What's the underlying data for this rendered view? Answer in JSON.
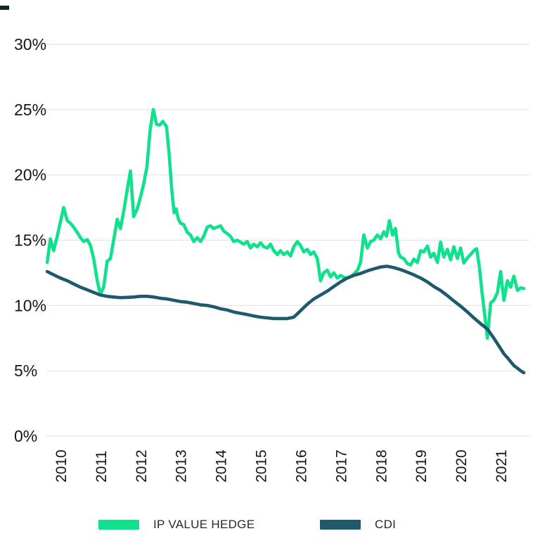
{
  "page": {
    "background": "#ffffff"
  },
  "corner_mark": {
    "color": "#16222a"
  },
  "legend": {
    "items": [
      {
        "label": "IP VALUE HEDGE",
        "color": "#10e18c"
      },
      {
        "label": "CDI",
        "color": "#1e5a6b"
      }
    ]
  },
  "chart_data": {
    "type": "line",
    "title": "",
    "xlabel": "",
    "ylabel": "",
    "grid": "horizontal",
    "grid_color": "#e4e4e4",
    "text_color": "#161616",
    "legend_position": "bottom",
    "ylim": [
      0,
      30
    ],
    "xlim": [
      2009.65,
      2021.72
    ],
    "y_ticks": [
      {
        "value": 30,
        "label": "30%"
      },
      {
        "value": 25,
        "label": "25%"
      },
      {
        "value": 20,
        "label": "20%"
      },
      {
        "value": 15,
        "label": "15%"
      },
      {
        "value": 10,
        "label": "10%"
      },
      {
        "value": 5,
        "label": "5%"
      },
      {
        "value": 0,
        "label": "0%"
      }
    ],
    "x_ticks": [
      {
        "value": 2010,
        "label": "2010"
      },
      {
        "value": 2011,
        "label": "2011"
      },
      {
        "value": 2012,
        "label": "2012"
      },
      {
        "value": 2013,
        "label": "2013"
      },
      {
        "value": 2014,
        "label": "2014"
      },
      {
        "value": 2015,
        "label": "2015"
      },
      {
        "value": 2016,
        "label": "2016"
      },
      {
        "value": 2017,
        "label": "2017"
      },
      {
        "value": 2018,
        "label": "2018"
      },
      {
        "value": 2019,
        "label": "2019"
      },
      {
        "value": 2020,
        "label": "2020"
      },
      {
        "value": 2021,
        "label": "2021"
      }
    ],
    "series": [
      {
        "name": "IP VALUE HEDGE",
        "color": "#10e18c",
        "stroke_width": 4.6,
        "points": [
          [
            2009.67,
            13.3
          ],
          [
            2009.75,
            15.1
          ],
          [
            2009.83,
            14.2
          ],
          [
            2009.92,
            15.3
          ],
          [
            2010.0,
            16.4
          ],
          [
            2010.08,
            17.5
          ],
          [
            2010.17,
            16.5
          ],
          [
            2010.25,
            16.3
          ],
          [
            2010.33,
            16.0
          ],
          [
            2010.42,
            15.6
          ],
          [
            2010.5,
            15.2
          ],
          [
            2010.58,
            14.9
          ],
          [
            2010.67,
            15.05
          ],
          [
            2010.75,
            14.6
          ],
          [
            2010.83,
            13.6
          ],
          [
            2010.92,
            11.9
          ],
          [
            2011.0,
            10.85
          ],
          [
            2011.08,
            11.4
          ],
          [
            2011.17,
            13.4
          ],
          [
            2011.25,
            13.6
          ],
          [
            2011.33,
            15.0
          ],
          [
            2011.42,
            16.6
          ],
          [
            2011.5,
            15.9
          ],
          [
            2011.58,
            17.2
          ],
          [
            2011.67,
            18.9
          ],
          [
            2011.75,
            20.3
          ],
          [
            2011.83,
            16.8
          ],
          [
            2011.92,
            17.4
          ],
          [
            2012.0,
            18.3
          ],
          [
            2012.08,
            19.3
          ],
          [
            2012.16,
            20.6
          ],
          [
            2012.24,
            23.4
          ],
          [
            2012.32,
            25.0
          ],
          [
            2012.4,
            23.9
          ],
          [
            2012.48,
            23.8
          ],
          [
            2012.56,
            24.1
          ],
          [
            2012.65,
            23.7
          ],
          [
            2012.72,
            21.5
          ],
          [
            2012.78,
            18.9
          ],
          [
            2012.84,
            17.1
          ],
          [
            2012.89,
            17.4
          ],
          [
            2012.95,
            16.6
          ],
          [
            2013.0,
            16.3
          ],
          [
            2013.08,
            16.2
          ],
          [
            2013.17,
            15.6
          ],
          [
            2013.25,
            15.4
          ],
          [
            2013.33,
            14.9
          ],
          [
            2013.42,
            15.2
          ],
          [
            2013.5,
            14.9
          ],
          [
            2013.58,
            15.3
          ],
          [
            2013.67,
            16.0
          ],
          [
            2013.75,
            16.1
          ],
          [
            2013.83,
            15.9
          ],
          [
            2013.92,
            16.0
          ],
          [
            2014.0,
            16.1
          ],
          [
            2014.08,
            15.7
          ],
          [
            2014.17,
            15.5
          ],
          [
            2014.25,
            15.3
          ],
          [
            2014.33,
            14.9
          ],
          [
            2014.42,
            15.0
          ],
          [
            2014.5,
            14.85
          ],
          [
            2014.58,
            14.7
          ],
          [
            2014.67,
            14.9
          ],
          [
            2014.75,
            14.4
          ],
          [
            2014.83,
            14.7
          ],
          [
            2014.92,
            14.5
          ],
          [
            2015.0,
            14.8
          ],
          [
            2015.08,
            14.5
          ],
          [
            2015.17,
            14.4
          ],
          [
            2015.25,
            14.7
          ],
          [
            2015.33,
            14.2
          ],
          [
            2015.42,
            13.9
          ],
          [
            2015.5,
            14.2
          ],
          [
            2015.58,
            13.9
          ],
          [
            2015.67,
            14.1
          ],
          [
            2015.75,
            13.8
          ],
          [
            2015.83,
            14.5
          ],
          [
            2015.92,
            14.9
          ],
          [
            2016.0,
            14.6
          ],
          [
            2016.08,
            14.1
          ],
          [
            2016.17,
            14.3
          ],
          [
            2016.25,
            13.9
          ],
          [
            2016.33,
            14.1
          ],
          [
            2016.42,
            13.6
          ],
          [
            2016.5,
            11.9
          ],
          [
            2016.58,
            12.5
          ],
          [
            2016.67,
            12.7
          ],
          [
            2016.75,
            12.2
          ],
          [
            2016.83,
            12.5
          ],
          [
            2016.92,
            12.1
          ],
          [
            2017.0,
            12.3
          ],
          [
            2017.08,
            12.15
          ],
          [
            2017.17,
            12.1
          ],
          [
            2017.25,
            12.2
          ],
          [
            2017.33,
            12.4
          ],
          [
            2017.42,
            12.7
          ],
          [
            2017.5,
            13.3
          ],
          [
            2017.58,
            15.4
          ],
          [
            2017.67,
            14.4
          ],
          [
            2017.75,
            14.9
          ],
          [
            2017.83,
            15.0
          ],
          [
            2017.92,
            15.4
          ],
          [
            2018.0,
            15.1
          ],
          [
            2018.08,
            15.65
          ],
          [
            2018.15,
            15.3
          ],
          [
            2018.22,
            16.5
          ],
          [
            2018.3,
            15.4
          ],
          [
            2018.37,
            15.9
          ],
          [
            2018.45,
            14.0
          ],
          [
            2018.5,
            13.7
          ],
          [
            2018.58,
            13.6
          ],
          [
            2018.67,
            13.2
          ],
          [
            2018.75,
            13.1
          ],
          [
            2018.83,
            13.55
          ],
          [
            2018.92,
            13.3
          ],
          [
            2019.0,
            14.2
          ],
          [
            2019.08,
            14.1
          ],
          [
            2019.17,
            14.55
          ],
          [
            2019.25,
            13.7
          ],
          [
            2019.33,
            14.0
          ],
          [
            2019.42,
            13.3
          ],
          [
            2019.5,
            14.85
          ],
          [
            2019.58,
            13.7
          ],
          [
            2019.67,
            14.3
          ],
          [
            2019.75,
            13.5
          ],
          [
            2019.83,
            14.5
          ],
          [
            2019.92,
            13.6
          ],
          [
            2020.0,
            14.4
          ],
          [
            2020.08,
            13.25
          ],
          [
            2020.17,
            13.65
          ],
          [
            2020.25,
            13.9
          ],
          [
            2020.33,
            14.2
          ],
          [
            2020.4,
            14.35
          ],
          [
            2020.47,
            12.9
          ],
          [
            2020.53,
            11.1
          ],
          [
            2020.6,
            9.3
          ],
          [
            2020.67,
            7.5
          ],
          [
            2020.75,
            10.2
          ],
          [
            2020.83,
            10.4
          ],
          [
            2020.92,
            11.0
          ],
          [
            2021.0,
            12.6
          ],
          [
            2021.08,
            10.4
          ],
          [
            2021.17,
            11.9
          ],
          [
            2021.25,
            11.4
          ],
          [
            2021.33,
            12.25
          ],
          [
            2021.42,
            11.15
          ],
          [
            2021.5,
            11.35
          ],
          [
            2021.58,
            11.3
          ]
        ]
      },
      {
        "name": "CDI",
        "color": "#1e5a6b",
        "stroke_width": 4.6,
        "points": [
          [
            2009.67,
            12.6
          ],
          [
            2009.83,
            12.35
          ],
          [
            2010.0,
            12.1
          ],
          [
            2010.17,
            11.9
          ],
          [
            2010.33,
            11.65
          ],
          [
            2010.5,
            11.4
          ],
          [
            2010.67,
            11.2
          ],
          [
            2010.83,
            11.0
          ],
          [
            2011.0,
            10.8
          ],
          [
            2011.17,
            10.7
          ],
          [
            2011.33,
            10.65
          ],
          [
            2011.5,
            10.6
          ],
          [
            2011.67,
            10.62
          ],
          [
            2011.83,
            10.65
          ],
          [
            2012.0,
            10.7
          ],
          [
            2012.17,
            10.7
          ],
          [
            2012.33,
            10.65
          ],
          [
            2012.5,
            10.55
          ],
          [
            2012.67,
            10.5
          ],
          [
            2012.83,
            10.4
          ],
          [
            2013.0,
            10.3
          ],
          [
            2013.17,
            10.25
          ],
          [
            2013.33,
            10.15
          ],
          [
            2013.5,
            10.05
          ],
          [
            2013.67,
            10.0
          ],
          [
            2013.83,
            9.9
          ],
          [
            2014.0,
            9.75
          ],
          [
            2014.17,
            9.65
          ],
          [
            2014.33,
            9.5
          ],
          [
            2014.5,
            9.4
          ],
          [
            2014.67,
            9.3
          ],
          [
            2014.83,
            9.2
          ],
          [
            2015.0,
            9.1
          ],
          [
            2015.17,
            9.05
          ],
          [
            2015.33,
            9.0
          ],
          [
            2015.5,
            9.0
          ],
          [
            2015.67,
            9.0
          ],
          [
            2015.83,
            9.1
          ],
          [
            2016.0,
            9.6
          ],
          [
            2016.17,
            10.1
          ],
          [
            2016.33,
            10.5
          ],
          [
            2016.5,
            10.8
          ],
          [
            2016.67,
            11.1
          ],
          [
            2016.83,
            11.45
          ],
          [
            2017.0,
            11.8
          ],
          [
            2017.17,
            12.1
          ],
          [
            2017.33,
            12.3
          ],
          [
            2017.5,
            12.45
          ],
          [
            2017.67,
            12.65
          ],
          [
            2017.83,
            12.8
          ],
          [
            2018.0,
            12.95
          ],
          [
            2018.17,
            13.0
          ],
          [
            2018.33,
            12.9
          ],
          [
            2018.5,
            12.75
          ],
          [
            2018.67,
            12.55
          ],
          [
            2018.83,
            12.35
          ],
          [
            2019.0,
            12.1
          ],
          [
            2019.17,
            11.8
          ],
          [
            2019.33,
            11.45
          ],
          [
            2019.5,
            11.15
          ],
          [
            2019.67,
            10.75
          ],
          [
            2019.83,
            10.35
          ],
          [
            2020.0,
            9.95
          ],
          [
            2020.17,
            9.5
          ],
          [
            2020.33,
            9.05
          ],
          [
            2020.5,
            8.6
          ],
          [
            2020.67,
            8.2
          ],
          [
            2020.83,
            7.5
          ],
          [
            2021.0,
            6.7
          ],
          [
            2021.08,
            6.3
          ],
          [
            2021.17,
            6.0
          ],
          [
            2021.25,
            5.7
          ],
          [
            2021.33,
            5.4
          ],
          [
            2021.42,
            5.2
          ],
          [
            2021.5,
            5.0
          ],
          [
            2021.58,
            4.85
          ]
        ]
      }
    ]
  }
}
